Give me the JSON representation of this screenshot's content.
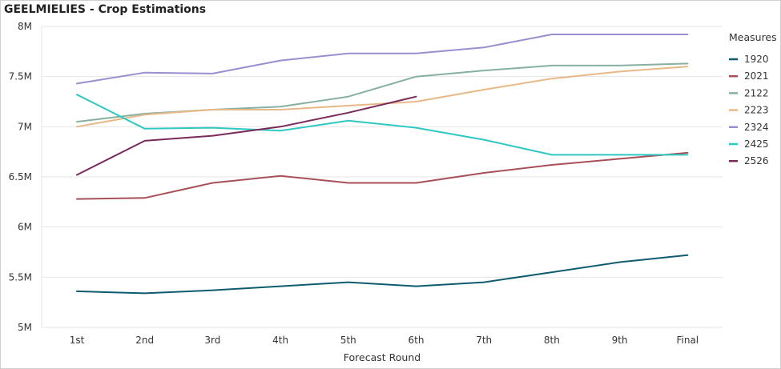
{
  "title": "GEELMIELIES - Crop Estimations",
  "chart_data": {
    "type": "line",
    "title": "GEELMIELIES - Crop Estimations",
    "xlabel": "Forecast Round",
    "ylabel": "",
    "categories": [
      "1st",
      "2nd",
      "3rd",
      "4th",
      "5th",
      "6th",
      "7th",
      "8th",
      "9th",
      "Final"
    ],
    "ylim": [
      5000000,
      8000000
    ],
    "yticks": [
      5000000,
      5500000,
      6000000,
      6500000,
      7000000,
      7500000,
      8000000
    ],
    "ytick_labels": [
      "5M",
      "5.5M",
      "6M",
      "6.5M",
      "7M",
      "7.5M",
      "8M"
    ],
    "grid": "horizontal",
    "legend": {
      "title": "Measures",
      "position": "right"
    },
    "series": [
      {
        "name": "1920",
        "color": "#0f5c6e",
        "values": [
          5360000,
          5340000,
          5370000,
          5410000,
          5450000,
          5410000,
          5450000,
          5550000,
          5650000,
          5720000
        ]
      },
      {
        "name": "2021",
        "color": "#a8505a",
        "values": [
          6280000,
          6290000,
          6440000,
          6510000,
          6440000,
          6440000,
          6540000,
          6620000,
          6680000,
          6740000
        ]
      },
      {
        "name": "2122",
        "color": "#88b0a0",
        "values": [
          7050000,
          7130000,
          7170000,
          7200000,
          7300000,
          7500000,
          7560000,
          7610000,
          7610000,
          7630000
        ]
      },
      {
        "name": "2223",
        "color": "#e8b886",
        "values": [
          7000000,
          7120000,
          7170000,
          7170000,
          7210000,
          7250000,
          7370000,
          7480000,
          7550000,
          7600000
        ]
      },
      {
        "name": "2324",
        "color": "#9b8dcf",
        "values": [
          7430000,
          7540000,
          7530000,
          7660000,
          7730000,
          7730000,
          7790000,
          7920000,
          7920000,
          7920000
        ]
      },
      {
        "name": "2425",
        "color": "#2fc8c2",
        "values": [
          7320000,
          6980000,
          6990000,
          6960000,
          7060000,
          6990000,
          6870000,
          6720000,
          6720000,
          6720000
        ]
      },
      {
        "name": "2526",
        "color": "#7a2a5a",
        "values": [
          6520000,
          6860000,
          6910000,
          7000000,
          7140000,
          7300000,
          null,
          null,
          null,
          null
        ]
      }
    ]
  }
}
